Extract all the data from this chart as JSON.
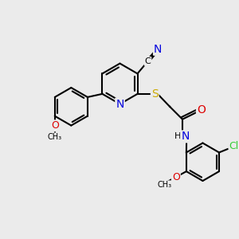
{
  "background_color": "#ebebeb",
  "bond_color": "#000000",
  "atom_colors": {
    "N": "#0000dd",
    "O": "#dd0000",
    "S": "#ccaa00",
    "Cl": "#33cc33",
    "C": "#000000",
    "H": "#000000"
  },
  "font_size": 9,
  "figsize": [
    3.0,
    3.0
  ],
  "dpi": 100
}
